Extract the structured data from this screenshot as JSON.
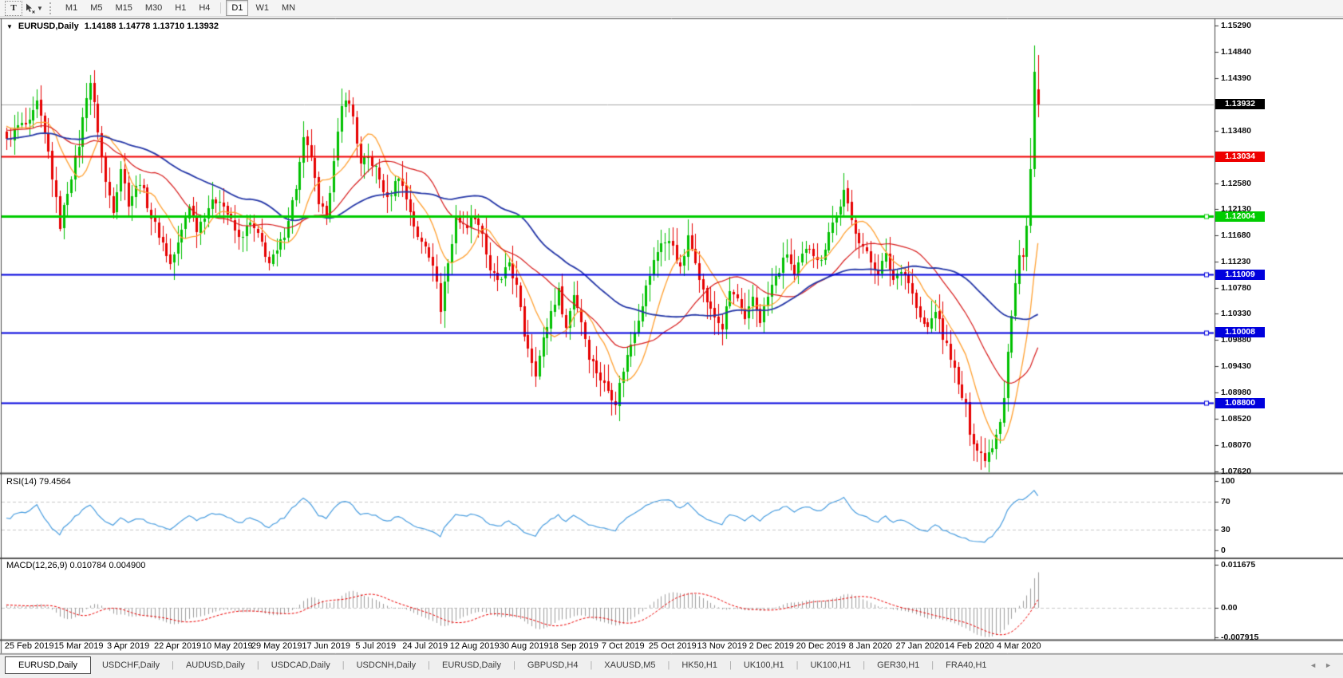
{
  "toolbar": {
    "text_tool": "T",
    "timeframes": [
      "M1",
      "M5",
      "M15",
      "M30",
      "H1",
      "H4",
      "D1",
      "W1",
      "MN"
    ],
    "active_timeframe": "D1"
  },
  "chart": {
    "title": {
      "collapse_icon": "▼",
      "symbol": "EURUSD,Daily",
      "ohlc": "1.14188 1.14778 1.13710 1.13932"
    },
    "price_axis_ticks": [
      "1.15290",
      "1.14840",
      "1.14390",
      "1.13480",
      "1.12580",
      "1.12130",
      "1.11680",
      "1.11230",
      "1.10780",
      "1.10330",
      "1.09880",
      "1.09430",
      "1.08980",
      "1.08520",
      "1.08070",
      "1.07620"
    ],
    "price_badges": [
      {
        "label": "1.13932",
        "value": 1.13932,
        "bg": "#000000"
      },
      {
        "label": "1.13034",
        "value": 1.13034,
        "bg": "#ee0000"
      },
      {
        "label": "1.12004",
        "value": 1.12004,
        "bg": "#00cc00"
      },
      {
        "label": "1.11009",
        "value": 1.11009,
        "bg": "#0000dd"
      },
      {
        "label": "1.10008",
        "value": 1.10008,
        "bg": "#0000dd"
      },
      {
        "label": "1.08800",
        "value": 1.088,
        "bg": "#0000dd"
      }
    ]
  },
  "chart_data": {
    "type": "candlestick",
    "symbol": "EURUSD",
    "period": "Daily",
    "current_candle": {
      "open": 1.14188,
      "high": 1.14778,
      "low": 1.1371,
      "close": 1.13932
    },
    "price_range": {
      "axis_top": 1.1529,
      "axis_bottom": 1.0762
    },
    "x_dates": [
      "25 Feb 2019",
      "15 Mar 2019",
      "3 Apr 2019",
      "22 Apr 2019",
      "10 May 2019",
      "29 May 2019",
      "17 Jun 2019",
      "5 Jul 2019",
      "24 Jul 2019",
      "12 Aug 2019",
      "30 Aug 2019",
      "18 Sep 2019",
      "7 Oct 2019",
      "25 Oct 2019",
      "13 Nov 2019",
      "2 Dec 2019",
      "20 Dec 2019",
      "8 Jan 2020",
      "27 Jan 2020",
      "14 Feb 2020",
      "4 Mar 2020"
    ],
    "candle_count": 272,
    "candle_up_color": "#00c000",
    "candle_down_color": "#e60000",
    "price_waypoints": [
      [
        0,
        1.133
      ],
      [
        3,
        1.1355
      ],
      [
        6,
        1.136
      ],
      [
        8,
        1.1395
      ],
      [
        11,
        1.131
      ],
      [
        14,
        1.1185
      ],
      [
        16,
        1.1245
      ],
      [
        19,
        1.1325
      ],
      [
        21,
        1.141
      ],
      [
        22,
        1.1432
      ],
      [
        24,
        1.135
      ],
      [
        26,
        1.1258
      ],
      [
        28,
        1.1215
      ],
      [
        30,
        1.1285
      ],
      [
        32,
        1.1225
      ],
      [
        35,
        1.1262
      ],
      [
        38,
        1.12
      ],
      [
        41,
        1.1155
      ],
      [
        43,
        1.1118
      ],
      [
        45,
        1.1152
      ],
      [
        48,
        1.1222
      ],
      [
        50,
        1.118
      ],
      [
        53,
        1.1218
      ],
      [
        56,
        1.1232
      ],
      [
        58,
        1.1205
      ],
      [
        61,
        1.1162
      ],
      [
        64,
        1.1188
      ],
      [
        67,
        1.1155
      ],
      [
        69,
        1.112
      ],
      [
        71,
        1.1138
      ],
      [
        73,
        1.1172
      ],
      [
        76,
        1.1252
      ],
      [
        78,
        1.133
      ],
      [
        80,
        1.1305
      ],
      [
        82,
        1.1215
      ],
      [
        84,
        1.1205
      ],
      [
        86,
        1.1292
      ],
      [
        88,
        1.1388
      ],
      [
        89,
        1.1408
      ],
      [
        91,
        1.1372
      ],
      [
        93,
        1.1288
      ],
      [
        95,
        1.1302
      ],
      [
        97,
        1.1282
      ],
      [
        100,
        1.1228
      ],
      [
        103,
        1.1272
      ],
      [
        106,
        1.1212
      ],
      [
        108,
        1.1162
      ],
      [
        110,
        1.1152
      ],
      [
        112,
        1.1122
      ],
      [
        114,
        1.1042
      ],
      [
        115,
        1.1088
      ],
      [
        117,
        1.1152
      ],
      [
        118,
        1.1202
      ],
      [
        120,
        1.1182
      ],
      [
        123,
        1.1202
      ],
      [
        125,
        1.1172
      ],
      [
        127,
        1.1102
      ],
      [
        130,
        1.1088
      ],
      [
        132,
        1.1122
      ],
      [
        134,
        1.1078
      ],
      [
        136,
        1.0998
      ],
      [
        139,
        1.0932
      ],
      [
        141,
        1.0988
      ],
      [
        143,
        1.1038
      ],
      [
        145,
        1.1072
      ],
      [
        147,
        1.1008
      ],
      [
        149,
        1.1068
      ],
      [
        151,
        1.1022
      ],
      [
        153,
        1.0962
      ],
      [
        156,
        1.0922
      ],
      [
        158,
        1.0902
      ],
      [
        160,
        1.0882
      ],
      [
        162,
        1.0938
      ],
      [
        164,
        1.0982
      ],
      [
        166,
        1.1028
      ],
      [
        168,
        1.1078
      ],
      [
        170,
        1.1122
      ],
      [
        172,
        1.1158
      ],
      [
        175,
        1.1152
      ],
      [
        177,
        1.1108
      ],
      [
        179,
        1.1162
      ],
      [
        181,
        1.1128
      ],
      [
        183,
        1.1072
      ],
      [
        185,
        1.1038
      ],
      [
        188,
        1.1008
      ],
      [
        190,
        1.1072
      ],
      [
        192,
        1.1058
      ],
      [
        194,
        1.1018
      ],
      [
        196,
        1.1062
      ],
      [
        198,
        1.1022
      ],
      [
        201,
        1.1082
      ],
      [
        203,
        1.1108
      ],
      [
        205,
        1.1138
      ],
      [
        207,
        1.1098
      ],
      [
        209,
        1.1132
      ],
      [
        211,
        1.1148
      ],
      [
        214,
        1.1122
      ],
      [
        216,
        1.1178
      ],
      [
        218,
        1.1202
      ],
      [
        220,
        1.1242
      ],
      [
        222,
        1.1192
      ],
      [
        224,
        1.1162
      ],
      [
        227,
        1.1122
      ],
      [
        229,
        1.1108
      ],
      [
        231,
        1.1132
      ],
      [
        233,
        1.1092
      ],
      [
        235,
        1.1112
      ],
      [
        237,
        1.1088
      ],
      [
        240,
        1.1022
      ],
      [
        242,
        1.1008
      ],
      [
        244,
        1.1042
      ],
      [
        246,
        1.0992
      ],
      [
        248,
        1.0962
      ],
      [
        250,
        1.0908
      ],
      [
        252,
        1.0872
      ],
      [
        253,
        1.0832
      ],
      [
        255,
        1.0798
      ],
      [
        257,
        1.0786
      ],
      [
        259,
        1.0808
      ],
      [
        261,
        1.0852
      ],
      [
        262,
        1.0892
      ],
      [
        263,
        1.0968
      ],
      [
        264,
        1.1028
      ],
      [
        265,
        1.1082
      ],
      [
        266,
        1.1132
      ],
      [
        267,
        1.1138
      ],
      [
        268,
        1.1185
      ],
      [
        269,
        1.1282
      ],
      [
        270,
        1.145
      ],
      [
        271,
        1.13932
      ]
    ],
    "last_candles": [
      {
        "i": 269,
        "o": 1.1185,
        "h": 1.1335,
        "l": 1.1172,
        "c": 1.1282
      },
      {
        "i": 270,
        "o": 1.1282,
        "h": 1.1495,
        "l": 1.1268,
        "c": 1.145
      },
      {
        "i": 271,
        "o": 1.14188,
        "h": 1.14778,
        "l": 1.1371,
        "c": 1.13932
      }
    ],
    "noise": 0.0016,
    "moving_averages": [
      {
        "name": "ma-fast",
        "period": 10,
        "color": "#ffa132",
        "line_width": 1.3
      },
      {
        "name": "ma-medium",
        "period": 25,
        "color": "#d81d1d",
        "line_width": 1.2
      },
      {
        "name": "ma-slow",
        "period": 50,
        "color": "#2638a8",
        "line_width": 1.8
      }
    ],
    "horizontal_lines": [
      {
        "name": "current-price-line",
        "value": 1.13932,
        "color": "#a8a8a8",
        "width": 1,
        "handle": false
      },
      {
        "name": "resistance-line",
        "value": 1.13034,
        "color": "#f00000",
        "width": 2,
        "handle": false
      },
      {
        "name": "level-line-green",
        "value": 1.12004,
        "color": "#00cc00",
        "width": 3,
        "handle": true
      },
      {
        "name": "support-line-1",
        "value": 1.11009,
        "color": "#0000dd",
        "width": 2,
        "handle": true
      },
      {
        "name": "support-line-2",
        "value": 1.10008,
        "color": "#0000dd",
        "width": 2,
        "handle": true
      },
      {
        "name": "support-line-3",
        "value": 1.088,
        "color": "#0000dd",
        "width": 2,
        "handle": true
      }
    ],
    "rsi": {
      "label_name": "RSI(14)",
      "label_value": "79.4564",
      "period": 14,
      "current": 79.4564,
      "color": "#4a9ee0",
      "scale_labels": [
        {
          "v": 100,
          "t": "100"
        },
        {
          "v": 70,
          "t": "70"
        },
        {
          "v": 30,
          "t": "30"
        },
        {
          "v": 0,
          "t": "0"
        }
      ],
      "dashed_levels": [
        70,
        30
      ],
      "level_color": "#c8c8c8"
    },
    "macd": {
      "label_name": "MACD(12,26,9)",
      "macd_value": "0.010784",
      "signal_value": "0.004900",
      "fast": 12,
      "slow": 26,
      "signal": 9,
      "macd_current": 0.010784,
      "signal_current": 0.0049,
      "histogram_color": "#9e9e9e",
      "signal_color": "#ee0000",
      "zero_line_color": "#c8c8c8",
      "scale_top_value": 0.011675,
      "scale_labels": [
        {
          "v": 0.011675,
          "t": "0.011675"
        },
        {
          "v": 0,
          "t": "0.00"
        },
        {
          "v": -0.007915,
          "t": "-0.007915"
        }
      ]
    }
  },
  "tabs": {
    "items": [
      {
        "label": "EURUSD,Daily",
        "active": true
      },
      {
        "label": "USDCHF,Daily",
        "active": false
      },
      {
        "label": "AUDUSD,Daily",
        "active": false
      },
      {
        "label": "USDCAD,Daily",
        "active": false
      },
      {
        "label": "USDCNH,Daily",
        "active": false
      },
      {
        "label": "EURUSD,Daily",
        "active": false
      },
      {
        "label": "GBPUSD,H4",
        "active": false
      },
      {
        "label": "XAUUSD,M5",
        "active": false
      },
      {
        "label": "HK50,H1",
        "active": false
      },
      {
        "label": "UK100,H1",
        "active": false
      },
      {
        "label": "UK100,H1",
        "active": false
      },
      {
        "label": "GER30,H1",
        "active": false
      },
      {
        "label": "FRA40,H1",
        "active": false
      }
    ],
    "scroll_left": "◄",
    "scroll_right": "►"
  }
}
